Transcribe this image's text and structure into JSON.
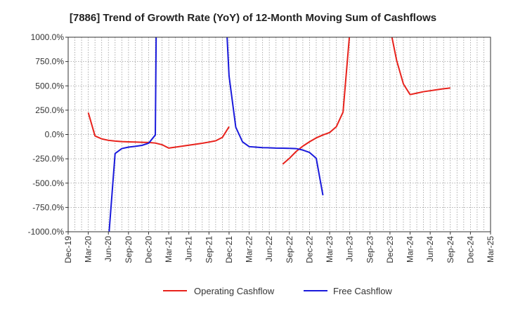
{
  "chart_data": {
    "type": "line",
    "title": "[7886]  Trend of Growth Rate (YoY) of 12-Month Moving Sum of Cashflows",
    "xlabel": "",
    "ylabel": "",
    "ylim": [
      -1000,
      1000
    ],
    "y_ticks": [
      "1000.0%",
      "750.0%",
      "500.0%",
      "250.0%",
      "0.0%",
      "-250.0%",
      "-500.0%",
      "-750.0%",
      "-1000.0%"
    ],
    "x_ticks": [
      "Dec-19",
      "Mar-20",
      "Jun-20",
      "Sep-20",
      "Dec-20",
      "Mar-21",
      "Jun-21",
      "Sep-21",
      "Dec-21",
      "Mar-22",
      "Jun-22",
      "Sep-22",
      "Dec-22",
      "Mar-23",
      "Jun-23",
      "Sep-23",
      "Dec-23",
      "Mar-24",
      "Jun-24",
      "Sep-24",
      "Dec-24",
      "Mar-25"
    ],
    "grid": true,
    "legend_position": "bottom-center",
    "series": [
      {
        "name": "Operating Cashflow",
        "color": "#e8221c",
        "points": [
          [
            "2020-03",
            225
          ],
          [
            "2020-04",
            -15
          ],
          [
            "2020-05",
            -45
          ],
          [
            "2020-06",
            -60
          ],
          [
            "2020-07",
            -68
          ],
          [
            "2020-08",
            -73
          ],
          [
            "2020-09",
            -76
          ],
          [
            "2020-10",
            -78
          ],
          [
            "2020-11",
            -80
          ],
          [
            "2020-12",
            -82
          ],
          [
            "2021-01",
            -88
          ],
          [
            "2021-02",
            -105
          ],
          [
            "2021-03",
            -140
          ],
          [
            "2021-04",
            -130
          ],
          [
            "2021-05",
            -120
          ],
          [
            "2021-06",
            -110
          ],
          [
            "2021-07",
            -100
          ],
          [
            "2021-08",
            -90
          ],
          [
            "2021-09",
            -78
          ],
          [
            "2021-10",
            -65
          ],
          [
            "2021-11",
            -30
          ],
          [
            "2021-12",
            80
          ],
          null,
          [
            "2022-08",
            -305
          ],
          [
            "2022-09",
            -245
          ],
          [
            "2022-10",
            -175
          ],
          [
            "2022-11",
            -120
          ],
          [
            "2022-12",
            -75
          ],
          [
            "2023-01",
            -35
          ],
          [
            "2023-02",
            -5
          ],
          [
            "2023-03",
            20
          ],
          [
            "2023-04",
            80
          ],
          [
            "2023-05",
            230
          ],
          [
            "2023-06",
            1050
          ],
          null,
          [
            "2023-12",
            1100
          ],
          [
            "2024-01",
            760
          ],
          [
            "2024-02",
            520
          ],
          [
            "2024-03",
            410
          ],
          [
            "2024-04",
            425
          ],
          [
            "2024-05",
            440
          ],
          [
            "2024-06",
            450
          ],
          [
            "2024-07",
            460
          ],
          [
            "2024-08",
            470
          ],
          [
            "2024-09",
            478
          ]
        ]
      },
      {
        "name": "Free Cashflow",
        "color": "#1a1adc",
        "points": [
          [
            "2020-06",
            -1100
          ],
          [
            "2020-07",
            -195
          ],
          [
            "2020-08",
            -145
          ],
          [
            "2020-09",
            -130
          ],
          [
            "2020-10",
            -122
          ],
          [
            "2020-11",
            -112
          ],
          [
            "2020-12",
            -90
          ],
          [
            "2021-01",
            -5
          ],
          [
            "2021-01-05",
            1100
          ],
          null,
          [
            "2021-11-20",
            1100
          ],
          [
            "2021-12",
            600
          ],
          [
            "2022-01",
            75
          ],
          [
            "2022-02",
            -75
          ],
          [
            "2022-03",
            -125
          ],
          [
            "2022-04",
            -130
          ],
          [
            "2022-05",
            -135
          ],
          [
            "2022-06",
            -137
          ],
          [
            "2022-07",
            -140
          ],
          [
            "2022-08",
            -141
          ],
          [
            "2022-09",
            -143
          ],
          [
            "2022-10",
            -145
          ],
          [
            "2022-11",
            -160
          ],
          [
            "2022-12",
            -185
          ],
          [
            "2023-01",
            -245
          ],
          [
            "2023-02",
            -625
          ]
        ]
      }
    ]
  }
}
